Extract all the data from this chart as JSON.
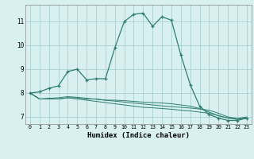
{
  "xlabel": "Humidex (Indice chaleur)",
  "ylabel": "",
  "bg_color": "#d8f0f0",
  "grid_color": "#a0c8c8",
  "line_color": "#2e7d6e",
  "x_ticks": [
    0,
    1,
    2,
    3,
    4,
    5,
    6,
    7,
    8,
    9,
    10,
    11,
    12,
    13,
    14,
    15,
    16,
    17,
    18,
    19,
    20,
    21,
    22,
    23
  ],
  "y_ticks": [
    7,
    8,
    9,
    10,
    11
  ],
  "ylim": [
    6.7,
    11.7
  ],
  "xlim": [
    -0.5,
    23.5
  ],
  "series": [
    {
      "x": [
        0,
        1,
        2,
        3,
        4,
        5,
        6,
        7,
        8,
        9,
        10,
        11,
        12,
        13,
        14,
        15,
        16,
        17,
        18,
        19,
        20,
        21,
        22,
        23
      ],
      "y": [
        8.0,
        8.05,
        8.2,
        8.3,
        8.9,
        9.0,
        8.55,
        8.6,
        8.6,
        9.9,
        11.0,
        11.3,
        11.35,
        10.8,
        11.2,
        11.05,
        9.6,
        8.35,
        7.45,
        7.1,
        6.95,
        6.85,
        6.85,
        6.95
      ],
      "marker": true
    },
    {
      "x": [
        0,
        1,
        2,
        3,
        4,
        5,
        6,
        7,
        8,
        9,
        10,
        11,
        12,
        13,
        14,
        15,
        16,
        17,
        18,
        19,
        20,
        21,
        22,
        23
      ],
      "y": [
        8.0,
        7.75,
        7.75,
        7.75,
        7.8,
        7.8,
        7.75,
        7.75,
        7.7,
        7.7,
        7.68,
        7.65,
        7.62,
        7.6,
        7.58,
        7.55,
        7.5,
        7.45,
        7.35,
        7.2,
        7.05,
        6.95,
        6.9,
        6.95
      ],
      "marker": false
    },
    {
      "x": [
        0,
        1,
        2,
        3,
        4,
        5,
        6,
        7,
        8,
        9,
        10,
        11,
        12,
        13,
        14,
        15,
        16,
        17,
        18,
        19,
        20,
        21,
        22,
        23
      ],
      "y": [
        8.0,
        7.75,
        7.75,
        7.75,
        7.8,
        7.75,
        7.7,
        7.65,
        7.6,
        7.55,
        7.5,
        7.45,
        7.4,
        7.38,
        7.35,
        7.32,
        7.28,
        7.25,
        7.2,
        7.15,
        7.05,
        6.95,
        6.9,
        6.95
      ],
      "marker": false
    },
    {
      "x": [
        0,
        1,
        2,
        3,
        4,
        5,
        6,
        7,
        8,
        9,
        10,
        11,
        12,
        13,
        14,
        15,
        16,
        17,
        18,
        19,
        20,
        21,
        22,
        23
      ],
      "y": [
        8.0,
        7.75,
        7.78,
        7.8,
        7.85,
        7.82,
        7.78,
        7.74,
        7.7,
        7.66,
        7.62,
        7.58,
        7.54,
        7.5,
        7.46,
        7.43,
        7.4,
        7.37,
        7.33,
        7.28,
        7.15,
        7.0,
        6.93,
        7.0
      ],
      "marker": false
    }
  ]
}
